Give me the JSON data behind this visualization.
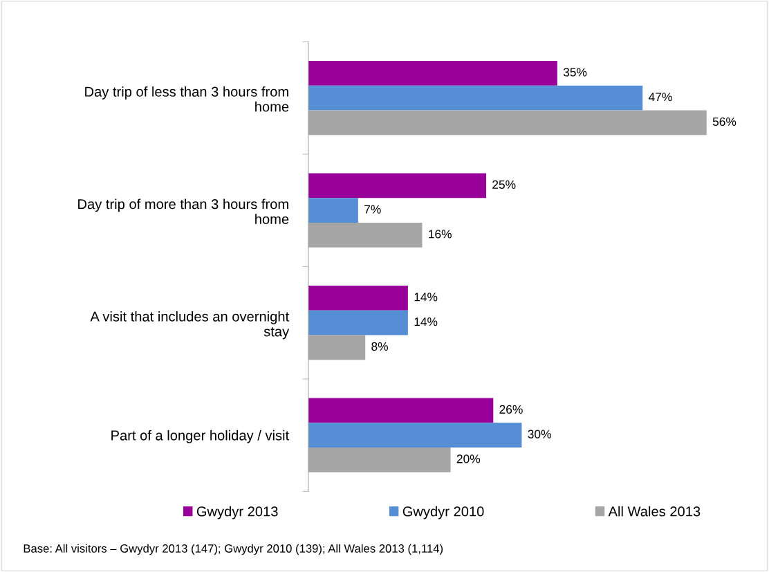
{
  "chart_data": {
    "type": "bar",
    "orientation": "horizontal",
    "categories": [
      "Day trip of less than 3 hours from home",
      "Day trip of more than 3 hours from home",
      "A visit that includes an overnight stay",
      "Part of a longer holiday / visit"
    ],
    "series": [
      {
        "name": "Gwydyr 2013",
        "color": "#990099",
        "values": [
          35,
          25,
          14,
          26
        ],
        "value_labels": [
          "35%",
          "25%",
          "14%",
          "26%"
        ]
      },
      {
        "name": "Gwydyr 2010",
        "color": "#558ed5",
        "values": [
          47,
          7,
          14,
          30
        ],
        "value_labels": [
          "47%",
          "7%",
          "14%",
          "30%"
        ]
      },
      {
        "name": "All Wales 2013",
        "color": "#a6a6a6",
        "values": [
          56,
          16,
          8,
          20
        ],
        "value_labels": [
          "56%",
          "16%",
          "8%",
          "20%"
        ]
      }
    ],
    "legend": "bottom",
    "grid": false,
    "annotations": [
      "Base: All visitors – Gwydyr 2013 (147); Gwydyr 2010 (139); All Wales 2013 (1,114)"
    ]
  }
}
